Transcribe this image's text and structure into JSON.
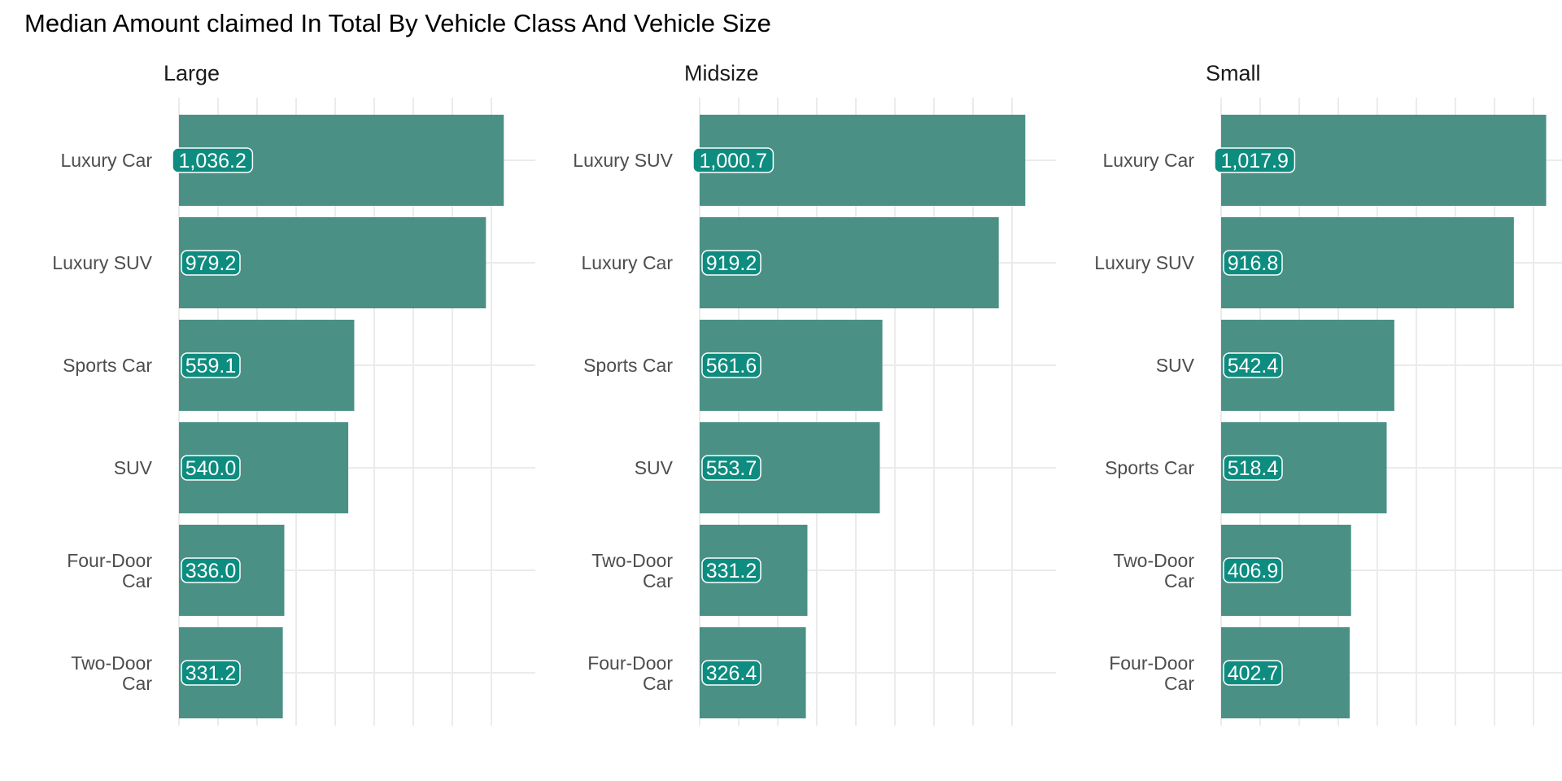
{
  "title": "Median Amount claimed In Total By Vehicle Class And Vehicle Size",
  "colors": {
    "bar": "#4a9085",
    "label_fill": "#0e8c7f",
    "label_text": "#ffffff",
    "grid": "#ebebeb",
    "axis_text": "#4d4d4d",
    "title_text": "#000000"
  },
  "chart_data": [
    {
      "type": "bar",
      "orientation": "horizontal",
      "facet": "Large",
      "categories": [
        "Luxury Car",
        "Luxury SUV",
        "Sports Car",
        "SUV",
        "Four-Door Car",
        "Two-Door Car"
      ],
      "values": [
        1036.2,
        979.2,
        559.1,
        540.0,
        336.0,
        331.2
      ],
      "data_labels": [
        "1,036.2",
        "979.2",
        "559.1",
        "540.0",
        "336.0",
        "331.2"
      ],
      "xlim": [
        0,
        1090
      ],
      "grid": true
    },
    {
      "type": "bar",
      "orientation": "horizontal",
      "facet": "Midsize",
      "categories": [
        "Luxury SUV",
        "Luxury Car",
        "Sports Car",
        "SUV",
        "Two-Door Car",
        "Four-Door Car"
      ],
      "values": [
        1000.7,
        919.2,
        561.6,
        553.7,
        331.2,
        326.4
      ],
      "data_labels": [
        "1,000.7",
        "919.2",
        "561.6",
        "553.7",
        "331.2",
        "326.4"
      ],
      "xlim": [
        0,
        1050
      ],
      "grid": true
    },
    {
      "type": "bar",
      "orientation": "horizontal",
      "facet": "Small",
      "categories": [
        "Luxury Car",
        "Luxury SUV",
        "SUV",
        "Sports Car",
        "Two-Door Car",
        "Four-Door Car"
      ],
      "values": [
        1017.9,
        916.8,
        542.4,
        518.4,
        406.9,
        402.7
      ],
      "data_labels": [
        "1,017.9",
        "916.8",
        "542.4",
        "518.4",
        "406.9",
        "402.7"
      ],
      "xlim": [
        0,
        1070
      ],
      "grid": true
    }
  ]
}
